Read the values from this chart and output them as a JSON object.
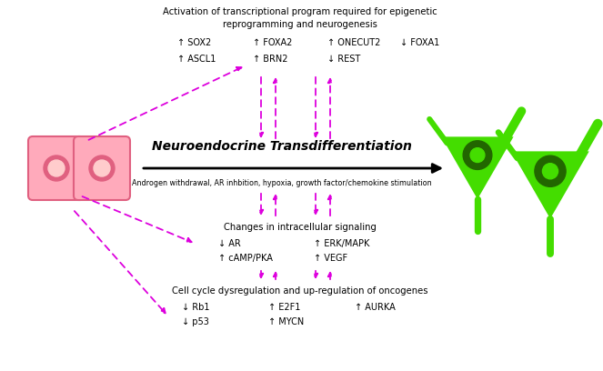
{
  "title": "Neuroendocrine Transdifferentiation",
  "subtitle": "Androgen withdrawal, AR inhbition, hypoxia, growth factor/chemokine stimulation",
  "top_box_title_line1": "Activation of transcriptional program required for epigenetic",
  "top_box_title_line2": "reprogramming and neurogenesis",
  "top_genes_r1_c1": "↑ SOX2",
  "top_genes_r1_c2": "↑ FOXA2",
  "top_genes_r1_c3": "↑ ONECUT2",
  "top_genes_r1_c4": "↓ FOXA1",
  "top_genes_r2_c1": "↑ ASCL1",
  "top_genes_r2_c2": "↑ BRN2",
  "top_genes_r2_c3": "↓ REST",
  "mid_box_title": "Changes in intracellular signaling",
  "mid_genes_r1_c1": "↓ AR",
  "mid_genes_r1_c2": "↑ ERK/MAPK",
  "mid_genes_r2_c1": "↑ cAMP/PKA",
  "mid_genes_r2_c2": "↑ VEGF",
  "bot_box_title": "Cell cycle dysregulation and up-regulation of oncogenes",
  "bot_genes_r1_c1": "↓ Rb1",
  "bot_genes_r1_c2": "↑ E2F1",
  "bot_genes_r1_c3": "↑ AURKA",
  "bot_genes_r2_c1": "↓ p53",
  "bot_genes_r2_c2": "↑ MYCN",
  "magenta": "#DD00DD",
  "cell_fill": "#FFAABB",
  "cell_border": "#E06080",
  "cell_nucleus_outer": "#E06080",
  "cell_nucleus_inner": "#FFCCCC",
  "neuron_green": "#44DD00",
  "neuron_dark": "#226600",
  "neuron_mid": "#33AA00",
  "bg": "#FFFFFF"
}
